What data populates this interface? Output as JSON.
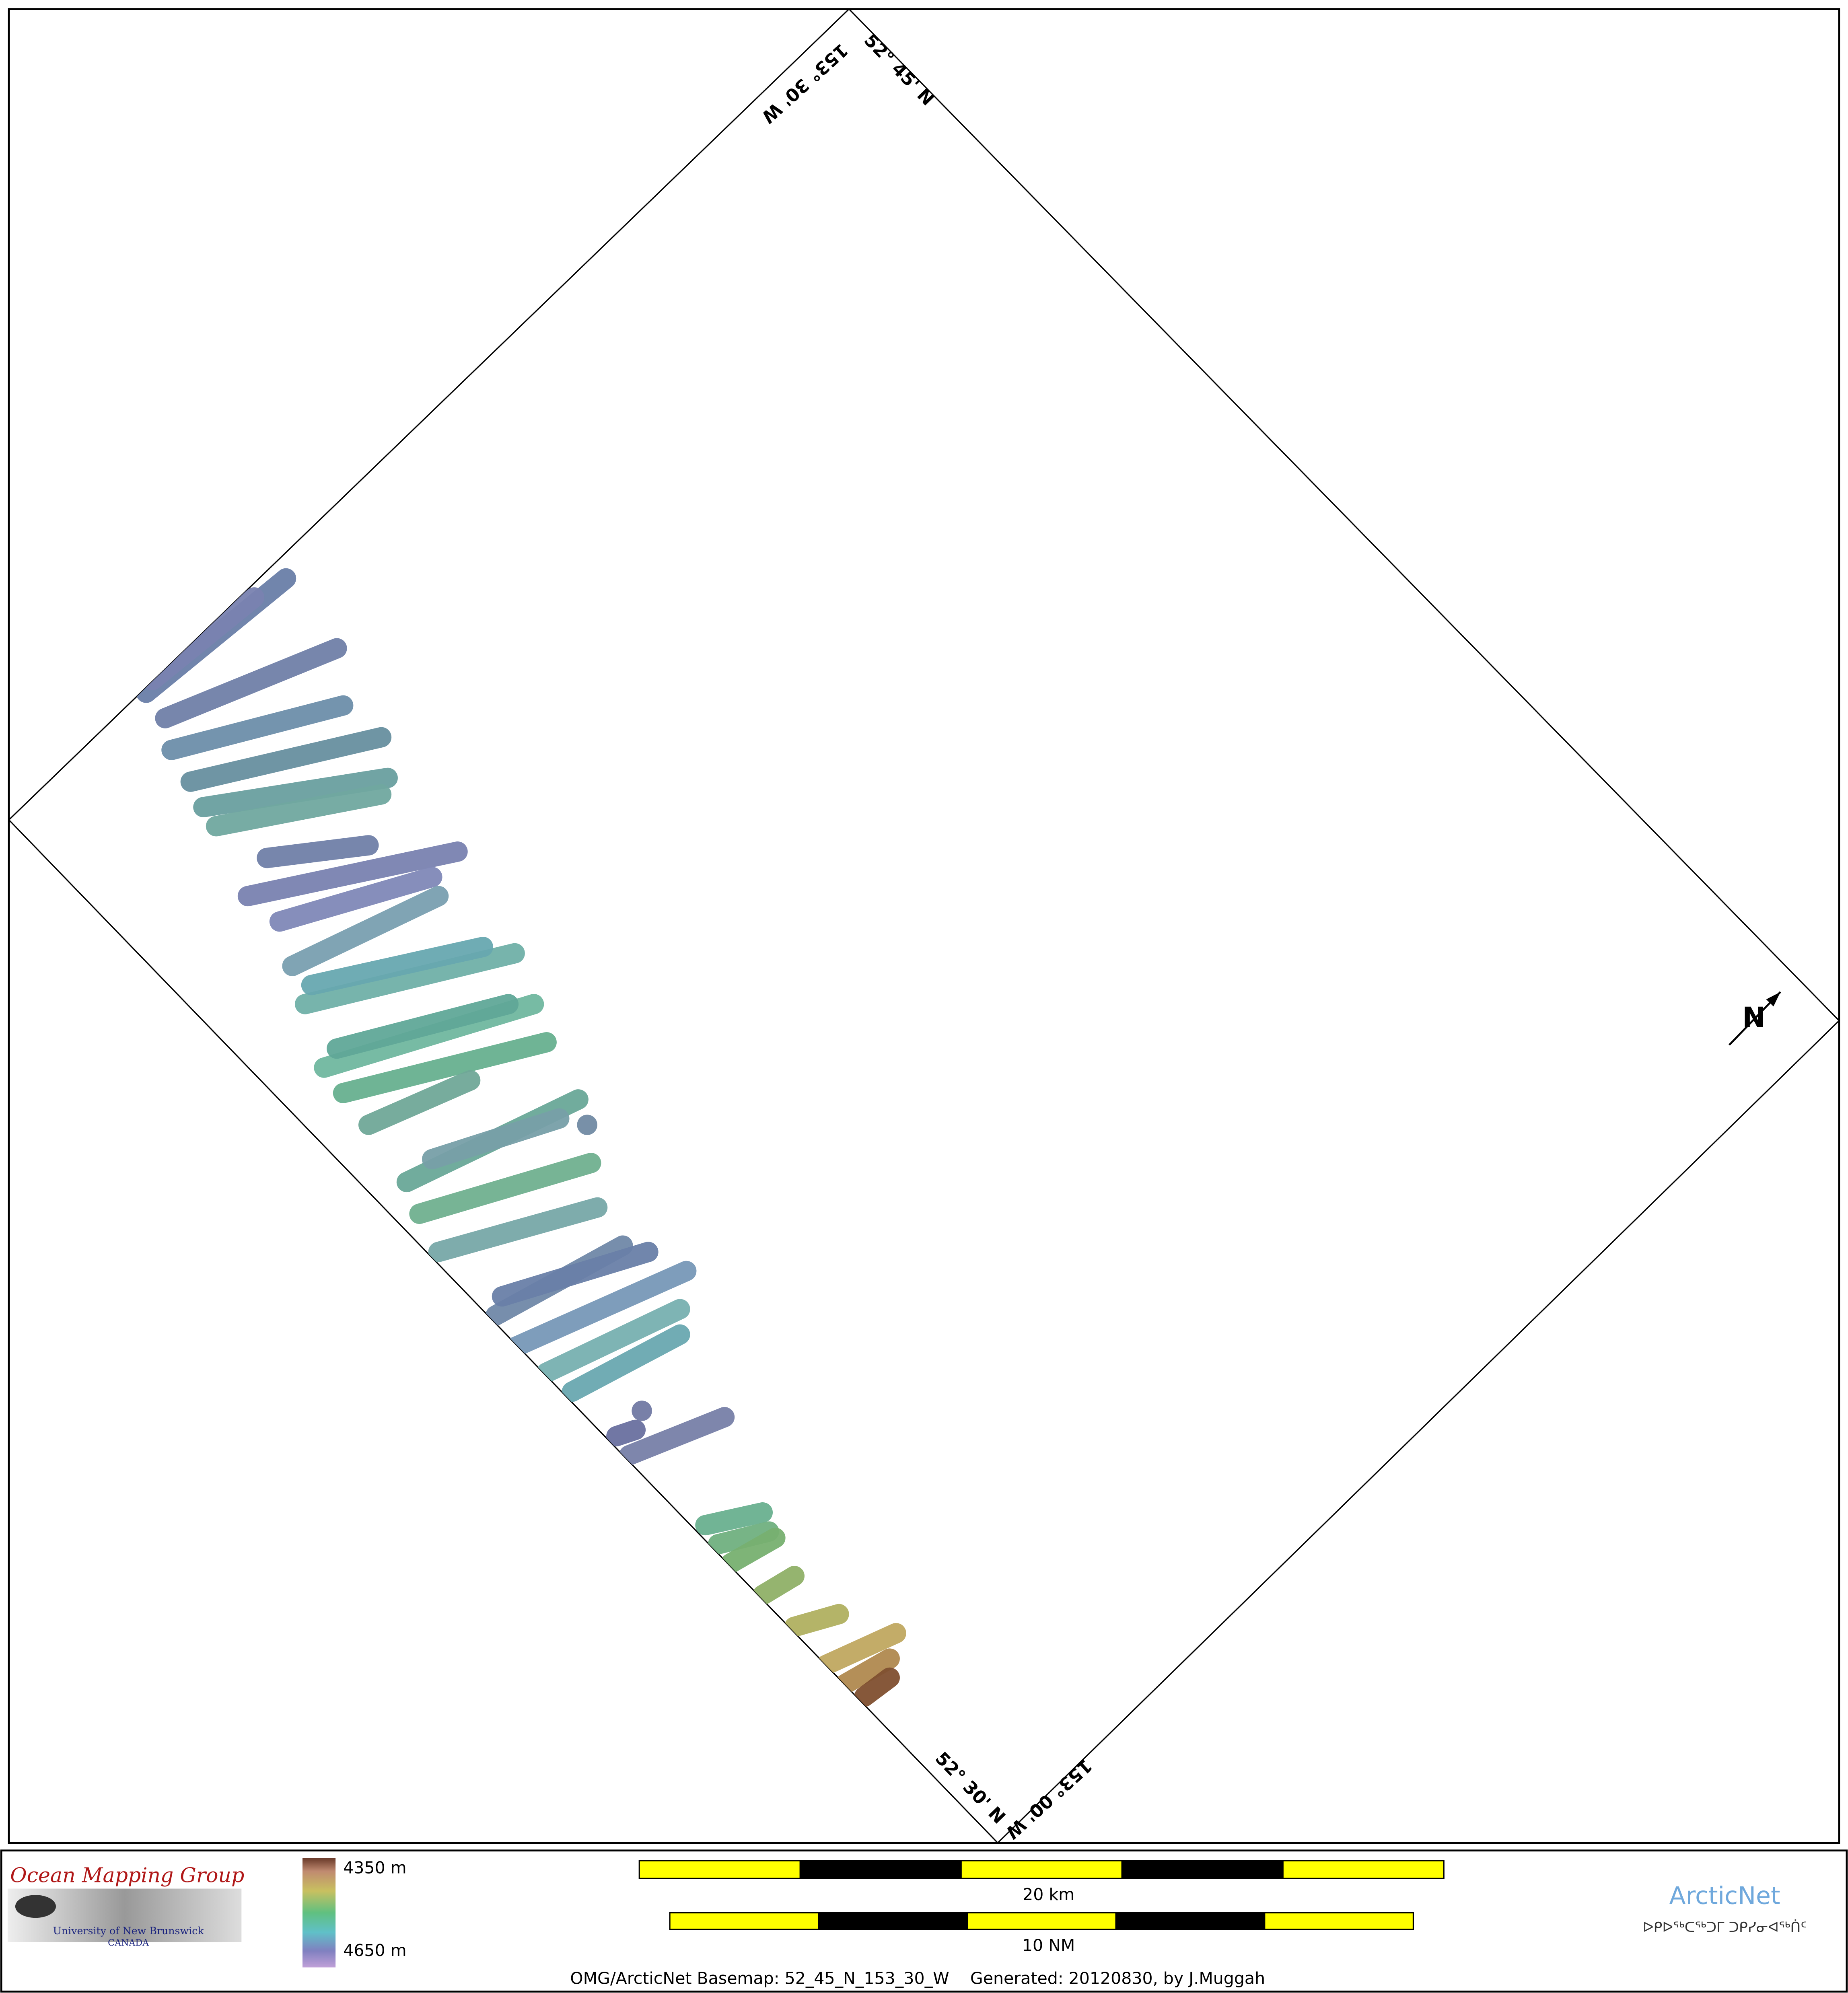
{
  "map": {
    "labels": {
      "top_left": "153° 30' W",
      "top_right": "52° 45' N",
      "bottom_left": "52° 30' N",
      "bottom_right": "153° 00' W"
    }
  },
  "footer": {
    "logo": {
      "title": "Ocean Mapping Group",
      "university": "University of New Brunswick",
      "country": "CANADA"
    },
    "colorbar": {
      "top": "4350 m",
      "bottom": "4650 m"
    },
    "scale_bars": [
      "20 km",
      "10 NM"
    ],
    "caption": "OMG/ArcticNet Basemap: 52_45_N_153_30_W    Generated: 20120830, by J.Muggah",
    "partner": {
      "name": "ArcticNet",
      "syllabics": "ᐅᑭᐅᖅᑕᖅᑐᒥ ᑐᑭᓯᓂᐊᖅᑏᑦ"
    }
  }
}
